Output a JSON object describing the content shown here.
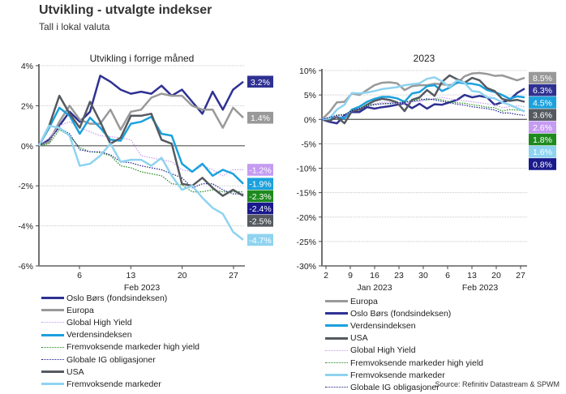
{
  "header": {
    "title": "Utvikling - utvalgte indekser",
    "subtitle": "Tall i lokal valuta"
  },
  "source": "Source: Refinitiv Datastream & SPWM",
  "chart_data": [
    {
      "type": "line",
      "title": "Utvikling i forrige måned",
      "xlabel": "Feb 2023",
      "ylabel": "",
      "x": [
        1,
        2,
        3,
        6,
        7,
        8,
        9,
        10,
        13,
        14,
        15,
        16,
        17,
        20,
        21,
        22,
        23,
        24,
        27,
        28
      ],
      "x_domain": [
        -1,
        28
      ],
      "xticks": [
        6,
        13,
        20,
        27
      ],
      "xtick_labels": [
        "6",
        "13",
        "20",
        "27"
      ],
      "ylim": [
        -6,
        4
      ],
      "yticks": [
        4,
        2,
        0,
        -2,
        -4,
        -6
      ],
      "ytick_labels": [
        "4%",
        "2%",
        "0%",
        "-2%",
        "-4%",
        "-6%"
      ],
      "grid": true,
      "x_start": 0,
      "series": [
        {
          "name": "Oslo Børs (fondsindeksen)",
          "color": "#2e3192",
          "dash": false,
          "width": 2.5,
          "values": [
            0,
            0.3,
            1.0,
            1.7,
            1.2,
            1.7,
            3.5,
            3.2,
            2.8,
            2.6,
            2.7,
            2.6,
            3.0,
            2.5,
            2.8,
            2.2,
            1.6,
            2.7,
            1.8,
            2.8,
            3.2
          ],
          "end_label": "3.2%"
        },
        {
          "name": "Europa",
          "color": "#999999",
          "dash": false,
          "width": 2.5,
          "values": [
            0,
            0.2,
            1.2,
            2.0,
            1.3,
            1.1,
            1.1,
            1.8,
            0.8,
            1.7,
            1.8,
            2.4,
            2.6,
            2.5,
            2.5,
            2.0,
            1.8,
            1.8,
            0.9,
            1.9,
            1.4
          ],
          "end_label": "1.4%"
        },
        {
          "name": "Global High Yield",
          "color": "#c59bf2",
          "dash": true,
          "width": 1.2,
          "values": [
            0,
            0.4,
            1.0,
            1.2,
            0.9,
            0.7,
            0.5,
            0.45,
            0.4,
            0.3,
            -0.5,
            -0.6,
            -0.7,
            -0.8,
            -1.2,
            -1.3,
            -1.0,
            -1.2,
            -1.5,
            -1.2,
            -1.2
          ],
          "end_label": "-1.2%"
        },
        {
          "name": "Verdensindeksen",
          "color": "#1ba1dd",
          "dash": false,
          "width": 2.5,
          "values": [
            0,
            0.9,
            1.9,
            1.5,
            0.6,
            1.4,
            0.9,
            0.3,
            0.25,
            1.1,
            1.2,
            1.45,
            0.6,
            0.5,
            -0.9,
            -1.3,
            -0.9,
            -1.5,
            -1.2,
            -1.4,
            -1.9
          ],
          "end_label": "-1.9%"
        },
        {
          "name": "Fremvoksende markeder high yield",
          "color": "#1e8a1e",
          "dash": true,
          "width": 1.2,
          "values": [
            0,
            0.1,
            0.8,
            0.5,
            -0.1,
            -0.3,
            -0.35,
            -0.5,
            -1.0,
            -1.1,
            -1.3,
            -1.4,
            -1.5,
            -1.9,
            -1.95,
            -2.3,
            -2.3,
            -2.2,
            -2.3,
            -2.3,
            -2.3
          ],
          "end_label": "-2.3%"
        },
        {
          "name": "Globale IG obligasjoner",
          "color": "#1a1a8c",
          "dash": true,
          "width": 1.2,
          "values": [
            0,
            0.3,
            0.9,
            0.6,
            -0.2,
            -0.3,
            -0.3,
            -0.45,
            -0.8,
            -0.85,
            -1.0,
            -1.1,
            -1.2,
            -1.4,
            -1.6,
            -2.1,
            -1.9,
            -1.9,
            -2.2,
            -2.4,
            -2.4
          ],
          "end_label": "-2.4%"
        },
        {
          "name": "USA",
          "color": "#555a60",
          "dash": false,
          "width": 2.5,
          "values": [
            0,
            1.0,
            2.5,
            1.6,
            0.9,
            2.2,
            1.2,
            0.1,
            0.4,
            1.5,
            1.5,
            1.6,
            0.3,
            0.1,
            -1.9,
            -2.0,
            -1.6,
            -2.1,
            -2.5,
            -2.2,
            -2.5
          ],
          "end_label": "-2.5%"
        },
        {
          "name": "Fremvoksende markeder",
          "color": "#8fd3f0",
          "dash": false,
          "width": 2.5,
          "values": [
            0,
            1.0,
            0.9,
            0.5,
            -1.0,
            -0.9,
            -0.5,
            0.1,
            -0.8,
            -0.7,
            -0.7,
            -1.0,
            -0.6,
            -1.5,
            -2.2,
            -2.0,
            -2.6,
            -3.1,
            -3.4,
            -4.3,
            -4.7
          ],
          "end_label": "-4.7%"
        }
      ],
      "legend": "bottom"
    },
    {
      "type": "line",
      "title": "2023",
      "xlabel_groups": [
        "Jan 2023",
        "Feb 2023"
      ],
      "xticks": [
        2,
        9,
        16,
        23,
        30,
        37,
        44,
        51,
        58
      ],
      "xtick_labels": [
        "2",
        "9",
        "16",
        "23",
        "30",
        "6",
        "13",
        "20",
        "27"
      ],
      "ylim": [
        -30,
        10
      ],
      "yticks": [
        10,
        5,
        0,
        -5,
        -10,
        -15,
        -20,
        -25,
        -30
      ],
      "ytick_labels": [
        "10%",
        "5%",
        "0%",
        "-5%",
        "-10%",
        "-15%",
        "-20%",
        "-25%",
        "-30%"
      ],
      "grid": true,
      "series": [
        {
          "name": "Europa",
          "color": "#999999",
          "dash": false,
          "width": 2.5,
          "values": [
            0,
            1.5,
            3.5,
            3.6,
            5.3,
            5.0,
            6.0,
            7.0,
            7.5,
            7.6,
            7.4,
            6.0,
            6.8,
            7.0,
            7.0,
            7.3,
            7.2,
            7.0,
            7.4,
            8.8,
            9.4,
            9.5,
            9.3,
            8.9,
            9.0,
            8.5,
            8.0,
            8.5
          ],
          "end_label": "8.5%"
        },
        {
          "name": "Oslo Børs (fondsindeksen)",
          "color": "#2e3192",
          "dash": false,
          "width": 2.5,
          "values": [
            0,
            -0.5,
            -0.8,
            0.8,
            1.5,
            1.5,
            2.5,
            2.2,
            2.5,
            2.7,
            3.0,
            3.3,
            2.3,
            3.2,
            2.2,
            3.1,
            3.0,
            3.5,
            4.0,
            5.0,
            4.5,
            4.8,
            4.5,
            3.0,
            3.5,
            4.0,
            5.4,
            6.3
          ],
          "end_label": "6.3%"
        },
        {
          "name": "Verdensindeksen",
          "color": "#1ba1dd",
          "dash": false,
          "width": 2.5,
          "values": [
            0,
            0.1,
            0.5,
            0.2,
            2.0,
            2.6,
            3.6,
            4.2,
            4.6,
            4.6,
            4.3,
            3.6,
            5.3,
            5.6,
            6.8,
            7.0,
            5.8,
            6.5,
            7.6,
            7.4,
            7.3,
            7.0,
            6.0,
            5.6,
            5.0,
            4.2,
            4.7,
            4.5
          ],
          "end_label": "4.5%"
        },
        {
          "name": "USA",
          "color": "#555a60",
          "dash": false,
          "width": 2.5,
          "values": [
            0,
            -0.3,
            0.5,
            -0.8,
            1.7,
            2.0,
            3.0,
            3.8,
            4.2,
            4.0,
            3.5,
            1.7,
            4.0,
            4.5,
            6.0,
            4.8,
            7.7,
            9.0,
            8.2,
            7.5,
            8.5,
            8.0,
            6.4,
            5.8,
            4.2,
            3.8,
            4.0,
            3.6
          ],
          "end_label": "3.6%"
        },
        {
          "name": "Global High Yield",
          "color": "#c59bf2",
          "dash": true,
          "width": 1.2,
          "values": [
            0,
            0.5,
            0.5,
            0.6,
            1.8,
            2.2,
            2.8,
            3.2,
            3.5,
            3.6,
            3.3,
            3.2,
            3.6,
            3.7,
            4.0,
            4.2,
            4.5,
            4.2,
            4.0,
            3.8,
            3.6,
            3.4,
            3.2,
            3.0,
            2.4,
            2.6,
            2.8,
            2.6
          ],
          "end_label": "2.6%"
        },
        {
          "name": "Fremvoksende markeder high yield",
          "color": "#1e8a1e",
          "dash": true,
          "width": 1.2,
          "values": [
            0,
            0.3,
            0.9,
            1.0,
            1.8,
            2.3,
            2.9,
            3.1,
            3.2,
            3.2,
            3.4,
            3.6,
            3.8,
            4.2,
            4.0,
            4.2,
            4.0,
            3.6,
            3.4,
            3.3,
            3.0,
            2.8,
            2.5,
            2.4,
            1.7,
            2.0,
            1.9,
            1.8
          ],
          "end_label": "1.8%"
        },
        {
          "name": "Fremvoksende markeder",
          "color": "#8fd3f0",
          "dash": false,
          "width": 2.5,
          "values": [
            0,
            0.2,
            2.0,
            3.0,
            5.4,
            5.3,
            5.5,
            5.8,
            6.2,
            6.4,
            6.6,
            7.0,
            7.2,
            7.4,
            8.3,
            8.6,
            7.8,
            6.6,
            8.0,
            7.5,
            5.8,
            5.6,
            4.5,
            4.3,
            3.5,
            3.0,
            2.3,
            1.6
          ],
          "end_label": "1.6%"
        },
        {
          "name": "Globale IG obligasjoner",
          "color": "#1a1a8c",
          "dash": true,
          "width": 1.2,
          "values": [
            0,
            0.4,
            0.8,
            0.9,
            1.8,
            2.2,
            2.7,
            3.0,
            3.2,
            3.3,
            3.4,
            3.5,
            3.7,
            3.9,
            4.2,
            4.0,
            3.7,
            3.4,
            3.1,
            2.9,
            2.6,
            2.4,
            2.2,
            1.9,
            1.3,
            1.3,
            1.0,
            0.8
          ],
          "end_label": "0.8%"
        }
      ],
      "legend": "bottom"
    }
  ]
}
